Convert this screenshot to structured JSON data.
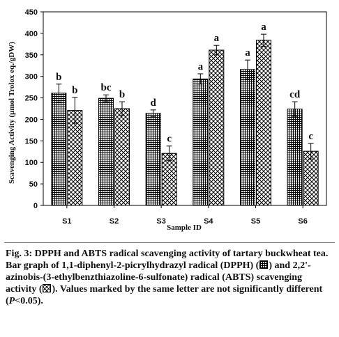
{
  "chart_data": {
    "type": "bar",
    "title": "",
    "xlabel": "Sample ID",
    "ylabel": "Scavenging Activity (µmol Trolox eq./gDW)",
    "ylim": [
      0,
      450
    ],
    "yticks": [
      "0",
      "50",
      "100",
      "150",
      "200",
      "250",
      "300",
      "350",
      "400",
      "450"
    ],
    "categories": [
      "S1",
      "S2",
      "S3",
      "S4",
      "S5",
      "S6"
    ],
    "grid": false,
    "legend": "none",
    "series": [
      {
        "pattern": "grid",
        "values": [
          261,
          249,
          214,
          294,
          316,
          224
        ],
        "errors": [
          21,
          8,
          8,
          12,
          22,
          17
        ],
        "letters": [
          "b",
          "bc",
          "d",
          "a",
          "a",
          "cd"
        ]
      },
      {
        "pattern": "crosshatch",
        "values": [
          221,
          225,
          121,
          361,
          384,
          126
        ],
        "errors": [
          30,
          16,
          17,
          11,
          14,
          18
        ],
        "letters": [
          "b",
          "b",
          "c",
          "a",
          "a",
          "c"
        ]
      }
    ]
  },
  "caption": {
    "title": "Fig. 3: DPPH and ABTS radical scavenging activity of tartary buckwheat tea.",
    "body_before_dpph": "Bar graph of 1,1-diphenyl-2-picrylhydrazyl radical (DPPH) (",
    "body_between": ") and 2,2'-azinobis-(3-ethylbenzthiazoline-6-sulfonate) radical (ABTS) scavenging activity (",
    "body_before_p": "). Values marked by the same letter are not significantly different (",
    "p_symbol": "P",
    "p_rest": "<0.05)."
  },
  "colors": {
    "ink": "#000000",
    "background": "#ffffff"
  }
}
